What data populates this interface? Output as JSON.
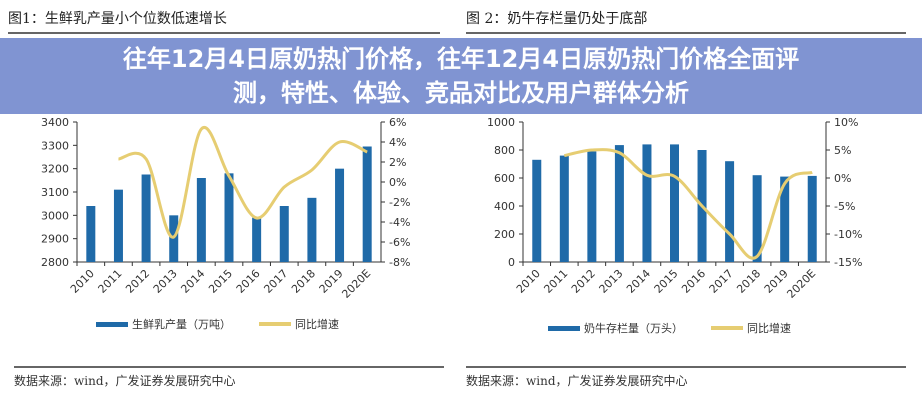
{
  "banner": {
    "line1": "往年12月4日原奶热门价格，往年12月4日原奶热门价格全面评",
    "line2": "测，特性、体验、竞品对比及用户群体分析"
  },
  "colors": {
    "bar": "#1f6aa8",
    "line": "#e6cd72",
    "banner": "#6f88c9"
  },
  "chart_data": [
    {
      "type": "bar+line",
      "title": "图1：生鲜乳产量小个位数低速增长",
      "categories": [
        "2010",
        "2011",
        "2012",
        "2013",
        "2014",
        "2015",
        "2016",
        "2017",
        "2018",
        "2019",
        "2020E"
      ],
      "series": [
        {
          "name": "生鲜乳产量（万吨）",
          "type": "bar",
          "axis": "left",
          "values": [
            3040,
            3110,
            3175,
            3000,
            3160,
            3180,
            2990,
            3040,
            3075,
            3200,
            3295
          ]
        },
        {
          "name": "同比增速",
          "type": "line",
          "axis": "right",
          "values": [
            null,
            2.3,
            2.3,
            -5.5,
            5.3,
            0.6,
            -3.6,
            -0.5,
            1.2,
            4.0,
            3.0
          ]
        }
      ],
      "ylim": [
        2800,
        3400
      ],
      "yticks": [
        "2800",
        "2900",
        "3000",
        "3100",
        "3200",
        "3300",
        "3400"
      ],
      "y2lim": [
        -8,
        6
      ],
      "y2ticks": [
        "-8%",
        "-6%",
        "-4%",
        "-2%",
        "0%",
        "2%",
        "4%",
        "6%"
      ],
      "legend": "bottom",
      "source": "数据来源：wind，广发证券发展研究中心"
    },
    {
      "type": "bar+line",
      "title": "图 2：奶牛存栏量仍处于底部",
      "categories": [
        "2010",
        "2011",
        "2012",
        "2013",
        "2014",
        "2015",
        "2016",
        "2017",
        "2018",
        "2019",
        "2020E"
      ],
      "series": [
        {
          "name": "奶牛存栏量（万头）",
          "type": "bar",
          "axis": "left",
          "values": [
            730,
            760,
            790,
            835,
            840,
            840,
            800,
            720,
            620,
            610,
            615
          ]
        },
        {
          "name": "同比增速",
          "type": "line",
          "axis": "right",
          "values": [
            null,
            4.0,
            5.0,
            4.5,
            0.5,
            0.3,
            -5.0,
            -10.0,
            -14.0,
            -1.0,
            1.0
          ]
        }
      ],
      "ylim": [
        0,
        1000
      ],
      "yticks": [
        "0",
        "200",
        "400",
        "600",
        "800",
        "1000"
      ],
      "y2lim": [
        -15,
        10
      ],
      "y2ticks": [
        "-15%",
        "-10%",
        "-5%",
        "0%",
        "5%",
        "10%"
      ],
      "legend": "bottom",
      "source": "数据来源：wind，广发证券发展研究中心"
    }
  ]
}
